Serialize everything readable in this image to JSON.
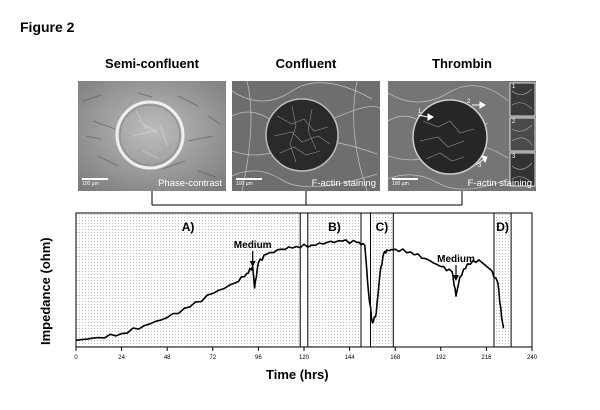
{
  "figure": {
    "label": "Figure 2"
  },
  "panels": [
    {
      "title": "Semi-confluent",
      "caption": "Phase-contrast",
      "scale_label": "100 µm"
    },
    {
      "title": "Confluent",
      "caption": "F-actin staining",
      "scale_label": "100 µm"
    },
    {
      "title": "Thrombin",
      "caption": "F-actin staining",
      "scale_label": "100 µm",
      "inset_labels": [
        "1",
        "2",
        "3"
      ],
      "arrow_labels": [
        "1",
        "2",
        "3"
      ]
    }
  ],
  "chart_data": {
    "type": "line",
    "xlabel": "Time (hrs)",
    "ylabel": "Impedance (ohm)",
    "xlim": [
      0,
      240
    ],
    "xticks": [
      0,
      24,
      48,
      72,
      96,
      120,
      144,
      168,
      192,
      216,
      240
    ],
    "ylim": [
      0,
      1
    ],
    "series": [
      {
        "x": [
          0,
          12,
          24,
          36,
          48,
          60,
          72,
          84,
          90,
          93,
          94,
          96,
          100,
          108,
          116,
          124,
          132,
          140,
          148,
          152,
          154,
          156,
          158,
          160,
          162,
          164,
          168,
          176,
          184,
          192,
          198,
          200,
          202,
          206,
          212,
          218,
          222,
          224,
          225
        ],
        "y": [
          0.05,
          0.07,
          0.1,
          0.16,
          0.22,
          0.3,
          0.4,
          0.48,
          0.55,
          0.6,
          0.44,
          0.63,
          0.69,
          0.73,
          0.75,
          0.76,
          0.78,
          0.79,
          0.78,
          0.76,
          0.4,
          0.18,
          0.25,
          0.55,
          0.7,
          0.72,
          0.73,
          0.71,
          0.66,
          0.6,
          0.56,
          0.38,
          0.52,
          0.62,
          0.65,
          0.58,
          0.48,
          0.22,
          0.14
        ]
      }
    ],
    "regions": [
      {
        "label": "A)",
        "x0": 0,
        "x1": 118
      },
      {
        "label": "B)",
        "x0": 122,
        "x1": 150
      },
      {
        "label": "C)",
        "x0": 155,
        "x1": 167
      },
      {
        "label": "D)",
        "x0": 220,
        "x1": 229
      }
    ],
    "annotations": [
      {
        "text": "Medium",
        "x": 93
      },
      {
        "text": "Medium",
        "x": 200
      }
    ],
    "grid": false
  }
}
